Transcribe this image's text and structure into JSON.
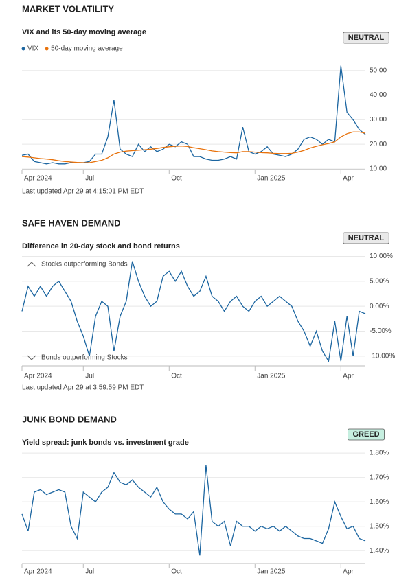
{
  "chart_data": [
    {
      "type": "line",
      "heading": "MARKET VOLATILITY",
      "title": "VIX and its 50-day moving average",
      "status": "NEUTRAL",
      "status_color": "#e9e9e9",
      "updated": "Last updated Apr 29 at 4:15:01 PM EDT",
      "categories": [
        "Apr 2024",
        null,
        null,
        null,
        null,
        null,
        null,
        null,
        null,
        null,
        "Jul",
        null,
        null,
        null,
        null,
        null,
        null,
        null,
        null,
        null,
        null,
        null,
        null,
        null,
        "Oct",
        null,
        null,
        null,
        null,
        null,
        null,
        null,
        null,
        null,
        null,
        null,
        null,
        null,
        "Jan 2025",
        null,
        null,
        null,
        null,
        null,
        null,
        null,
        null,
        null,
        null,
        null,
        null,
        null,
        "Apr",
        null,
        null,
        null,
        null
      ],
      "series": [
        {
          "name": "VIX",
          "color": "#1b65a0",
          "values": [
            15.5,
            16,
            13,
            12.5,
            12,
            12.5,
            12,
            12,
            12.5,
            12.5,
            12.5,
            13,
            16,
            16,
            23,
            38,
            18,
            16,
            15,
            20,
            17,
            19,
            17,
            18,
            20,
            19,
            21,
            20,
            15,
            15,
            14,
            13.5,
            13.5,
            14,
            15,
            14,
            27,
            17,
            16,
            17,
            19,
            16,
            15.5,
            15,
            16,
            18,
            22,
            23,
            22,
            20,
            22,
            21,
            52,
            33,
            30,
            26,
            24
          ]
        },
        {
          "name": "50-day moving average",
          "color": "#e8720c",
          "values": [
            15,
            14.8,
            14.5,
            14.2,
            14,
            13.7,
            13.3,
            13,
            12.8,
            12.6,
            12.5,
            12.5,
            13,
            13.5,
            14.5,
            16,
            16.8,
            17.2,
            17.4,
            17.6,
            17.8,
            18,
            18.3,
            18.7,
            19,
            19.2,
            19.3,
            19.1,
            18.6,
            18.2,
            17.8,
            17.3,
            17,
            16.8,
            16.6,
            16.5,
            17,
            17,
            16.8,
            16.6,
            16.5,
            16.3,
            16.2,
            16.2,
            16.3,
            16.8,
            17.5,
            18.5,
            19.2,
            19.8,
            20.3,
            21,
            23,
            24.3,
            25,
            25,
            24.5
          ]
        }
      ],
      "ylim": [
        10,
        53
      ],
      "yticks": [
        {
          "value": 10,
          "label": "10.00"
        },
        {
          "value": 20,
          "label": "20.00"
        },
        {
          "value": 30,
          "label": "30.00"
        },
        {
          "value": 40,
          "label": "40.00"
        },
        {
          "value": 50,
          "label": "50.00"
        }
      ],
      "grid": true
    },
    {
      "type": "line",
      "heading": "SAFE HAVEN DEMAND",
      "title": "Difference in 20-day stock and bond returns",
      "status": "NEUTRAL",
      "status_color": "#e9e9e9",
      "updated": "Last updated Apr 29 at 3:59:59 PM EDT",
      "annotations": [
        "Stocks outperforming Bonds",
        "Bonds outperforming Stocks"
      ],
      "categories": [
        "Apr 2024",
        null,
        null,
        null,
        null,
        null,
        null,
        null,
        null,
        null,
        "Jul",
        null,
        null,
        null,
        null,
        null,
        null,
        null,
        null,
        null,
        null,
        null,
        null,
        null,
        "Oct",
        null,
        null,
        null,
        null,
        null,
        null,
        null,
        null,
        null,
        null,
        null,
        null,
        null,
        "Jan 2025",
        null,
        null,
        null,
        null,
        null,
        null,
        null,
        null,
        null,
        null,
        null,
        null,
        null,
        "Apr",
        null,
        null,
        null,
        null
      ],
      "series": [
        {
          "name": "Difference",
          "color": "#1b65a0",
          "values": [
            -1,
            4,
            2,
            4,
            2,
            4,
            5,
            3,
            1,
            -3,
            -6,
            -10,
            -2,
            1,
            0,
            -9,
            -2,
            1,
            9,
            5,
            2,
            0,
            1,
            6,
            7,
            5,
            7,
            4,
            2,
            3,
            6,
            2,
            1,
            -1,
            1,
            2,
            0,
            -1,
            1,
            2,
            0,
            1,
            2,
            1,
            0,
            -3,
            -5,
            -8,
            -5,
            -9,
            -11,
            -3,
            -11,
            -2,
            -10,
            -1,
            -1.5
          ]
        }
      ],
      "ylim": [
        -11.8,
        10.2
      ],
      "yticks": [
        {
          "value": 10,
          "label": "10.00%"
        },
        {
          "value": 5,
          "label": "5.00%"
        },
        {
          "value": 0,
          "label": "0.00%"
        },
        {
          "value": -5,
          "label": "-5.00%"
        },
        {
          "value": -10,
          "label": "-10.00%"
        }
      ],
      "grid": true
    },
    {
      "type": "line",
      "heading": "JUNK BOND DEMAND",
      "title": "Yield spread: junk bonds vs. investment grade",
      "status": "GREED",
      "status_color": "#c6efe0",
      "categories": [
        "Apr 2024",
        null,
        null,
        null,
        null,
        null,
        null,
        null,
        null,
        null,
        "Jul",
        null,
        null,
        null,
        null,
        null,
        null,
        null,
        null,
        null,
        null,
        null,
        null,
        null,
        "Oct",
        null,
        null,
        null,
        null,
        null,
        null,
        null,
        null,
        null,
        null,
        null,
        null,
        null,
        "Jan 2025",
        null,
        null,
        null,
        null,
        null,
        null,
        null,
        null,
        null,
        null,
        null,
        null,
        null,
        "Apr",
        null,
        null,
        null,
        null
      ],
      "series": [
        {
          "name": "Yield spread",
          "color": "#1b65a0",
          "values": [
            1.55,
            1.48,
            1.64,
            1.65,
            1.63,
            1.64,
            1.65,
            1.64,
            1.5,
            1.45,
            1.64,
            1.62,
            1.6,
            1.64,
            1.66,
            1.72,
            1.68,
            1.67,
            1.69,
            1.66,
            1.64,
            1.62,
            1.66,
            1.6,
            1.57,
            1.55,
            1.55,
            1.53,
            1.56,
            1.38,
            1.75,
            1.52,
            1.5,
            1.52,
            1.42,
            1.52,
            1.5,
            1.5,
            1.48,
            1.5,
            1.49,
            1.5,
            1.48,
            1.5,
            1.48,
            1.46,
            1.45,
            1.45,
            1.44,
            1.43,
            1.49,
            1.6,
            1.54,
            1.49,
            1.5,
            1.45,
            1.44
          ]
        }
      ],
      "ylim": [
        1.35,
        1.82
      ],
      "yticks": [
        {
          "value": 1.4,
          "label": "1.40%"
        },
        {
          "value": 1.5,
          "label": "1.50%"
        },
        {
          "value": 1.6,
          "label": "1.60%"
        },
        {
          "value": 1.7,
          "label": "1.70%"
        },
        {
          "value": 1.8,
          "label": "1.80%"
        }
      ],
      "grid": true
    }
  ]
}
